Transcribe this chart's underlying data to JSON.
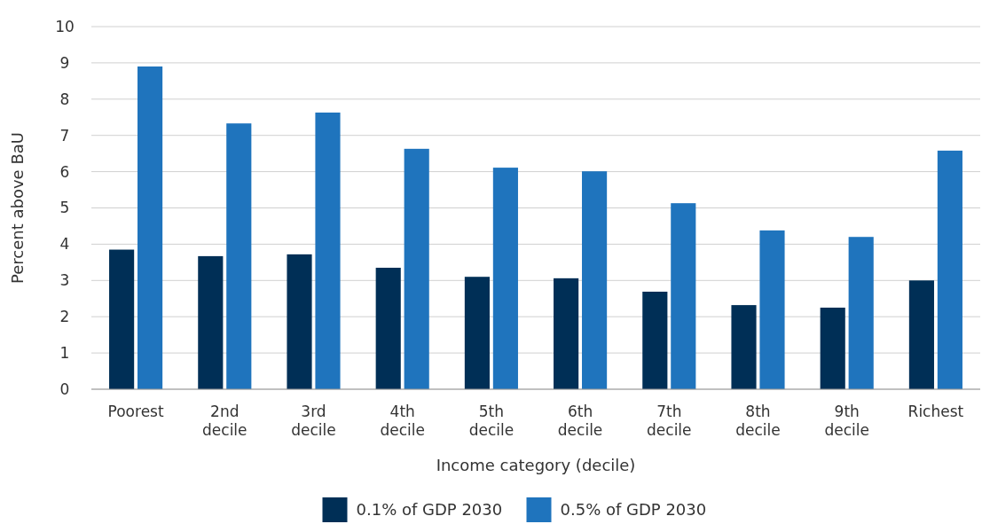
{
  "chart_data": {
    "type": "bar",
    "xlabel": "Income category (decile)",
    "ylabel": "Percent above BaU",
    "categories": [
      "Poorest",
      "2nd decile",
      "3rd decile",
      "4th decile",
      "5th decile",
      "6th decile",
      "7th decile",
      "8th decile",
      "9th decile",
      "Richest"
    ],
    "series": [
      {
        "name": "0.1% of GDP 2030",
        "color": "#002f56",
        "values": [
          3.85,
          3.67,
          3.72,
          3.35,
          3.1,
          3.06,
          2.69,
          2.32,
          2.25,
          3.0
        ]
      },
      {
        "name": "0.5% of GDP 2030",
        "color": "#1f74bd",
        "values": [
          8.9,
          7.33,
          7.63,
          6.63,
          6.11,
          6.01,
          5.13,
          4.38,
          4.2,
          6.58
        ]
      }
    ],
    "ylim": [
      0,
      10
    ],
    "yticks": [
      0,
      1,
      2,
      3,
      4,
      5,
      6,
      7,
      8,
      9,
      10
    ],
    "grid": "y",
    "legend": "bottom"
  }
}
